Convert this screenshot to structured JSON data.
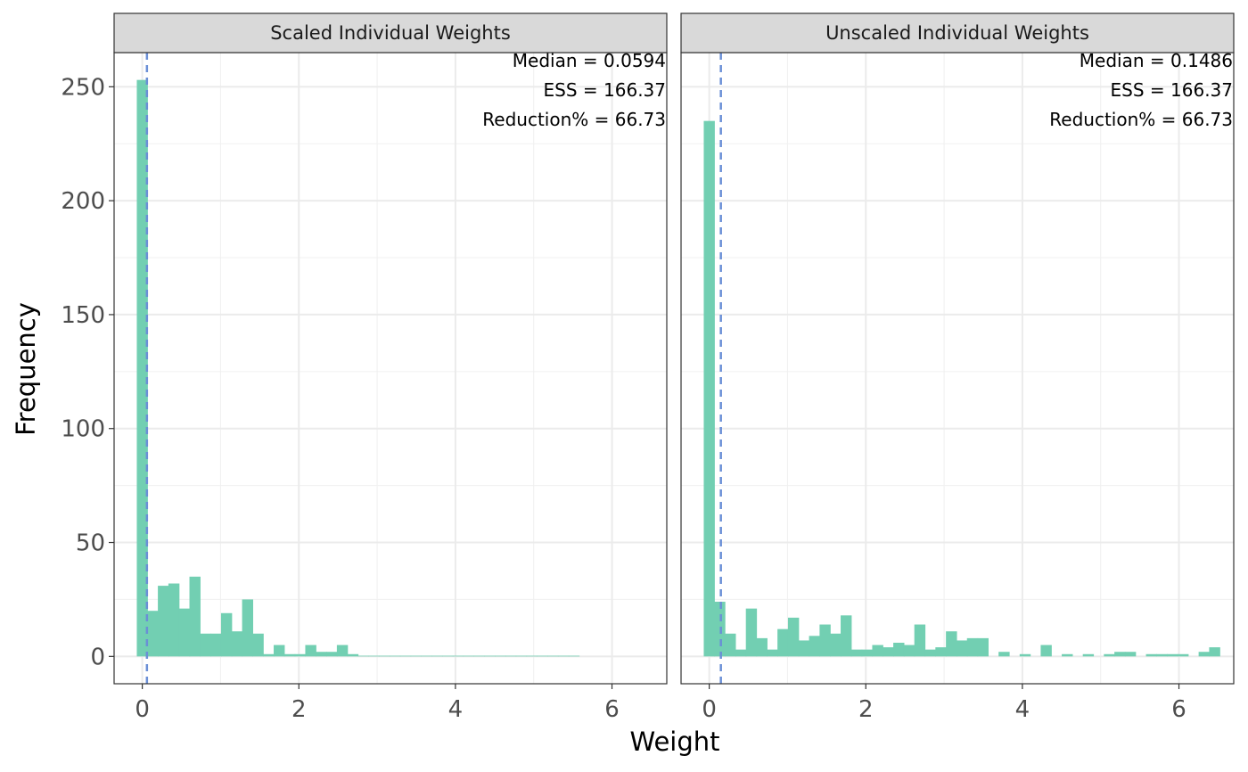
{
  "chart_data": {
    "type": "bar",
    "xlabel": "Weight",
    "ylabel": "Frequency",
    "xlim": [
      -0.36,
      6.7
    ],
    "ylim": [
      -12,
      265
    ],
    "x_ticks": [
      0,
      2,
      4,
      6
    ],
    "y_ticks": [
      0,
      50,
      100,
      150,
      200,
      250
    ],
    "grid": true,
    "bin_width": 0.1345,
    "bin_start": -0.07,
    "bar_color": "#72CFB2",
    "median_line_color": "#6A8FD6",
    "panels": [
      {
        "strip": "Scaled Individual Weights",
        "median": 0.0594,
        "annotations": [
          "Median = 0.0594",
          "ESS = 166.37",
          "Reduction% = 66.73"
        ],
        "values": [
          253,
          20,
          31,
          32,
          21,
          35,
          10,
          10,
          19,
          11,
          25,
          10,
          1,
          5,
          1,
          1,
          5,
          2,
          2,
          5,
          1,
          0.3,
          0.3,
          0.3,
          0.3,
          0.3,
          0.3,
          0.3,
          0.3,
          0.3,
          0.3,
          0.3,
          0.3,
          0.3,
          0.3,
          0.3,
          0.3,
          0.3,
          0.3,
          0.3,
          0.3,
          0.3
        ]
      },
      {
        "strip": "Unscaled Individual Weights",
        "median": 0.1486,
        "annotations": [
          "Median = 0.1486",
          "ESS = 166.37",
          "Reduction% = 66.73"
        ],
        "values": [
          235,
          24,
          10,
          3,
          21,
          8,
          3,
          12,
          17,
          7,
          9,
          14,
          10,
          18,
          3,
          3,
          5,
          4,
          6,
          5,
          14,
          3,
          4,
          11,
          7,
          8,
          8,
          0,
          2,
          0,
          1,
          0,
          5,
          0,
          1,
          0,
          1,
          0,
          1,
          2,
          2,
          0,
          1,
          1,
          1,
          1,
          0,
          2,
          4
        ]
      }
    ]
  }
}
